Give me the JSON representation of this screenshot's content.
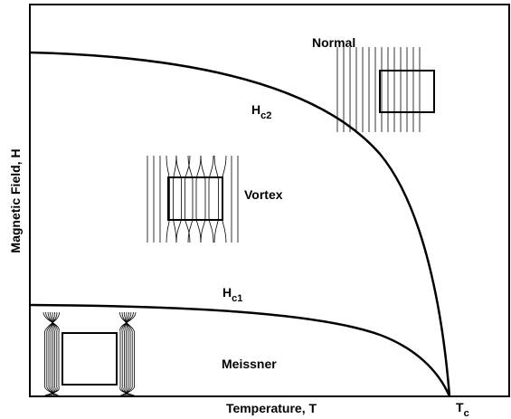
{
  "axes": {
    "x_label": "Temperature, T",
    "y_label": "Magnetic Field, H"
  },
  "regions": {
    "normal": "Normal",
    "vortex": "Vortex",
    "meissner": "Meissner"
  },
  "curves": {
    "hc2": {
      "symbol": "H",
      "subscript": "c2"
    },
    "hc1": {
      "symbol": "H",
      "subscript": "c1"
    }
  },
  "critical_point": {
    "symbol": "T",
    "subscript": "c"
  }
}
